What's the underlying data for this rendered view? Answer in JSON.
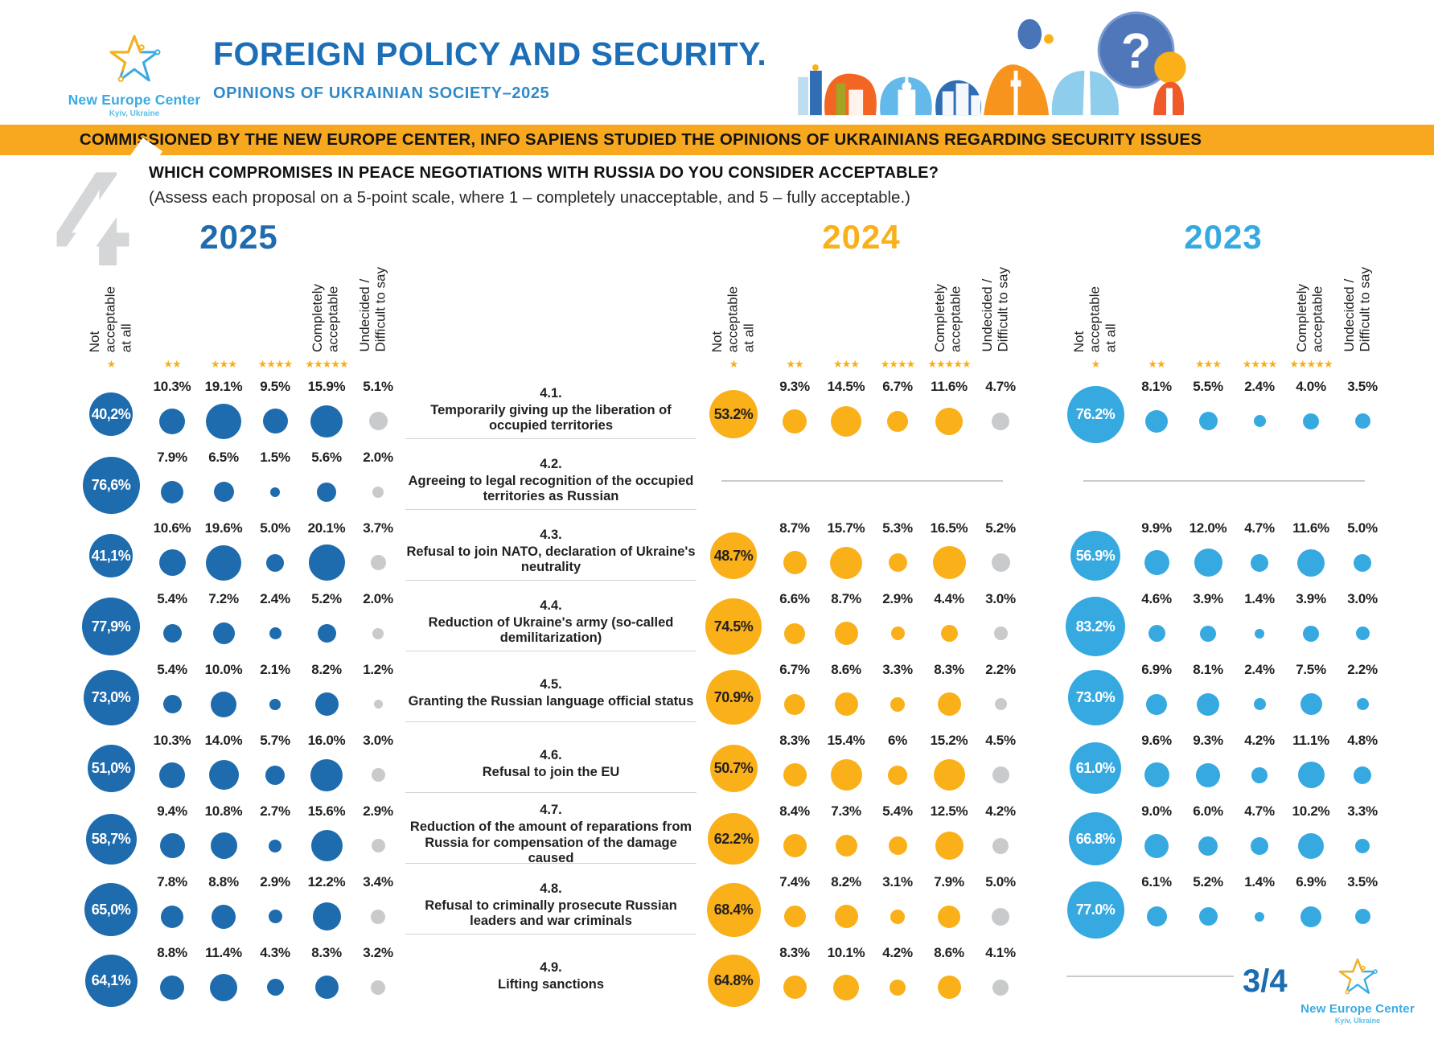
{
  "header": {
    "logo": {
      "name": "New Europe Center",
      "location": "Kyiv, Ukraine"
    },
    "title": "FOREIGN POLICY AND SECURITY.",
    "subtitle": "OPINIONS OF UKRAINIAN SOCIETY–2025"
  },
  "banner": {
    "text": "COMMISSIONED BY THE NEW EUROPE CENTER, INFO SAPIENS STUDIED THE OPINIONS OF UKRAINIANS REGARDING SECURITY ISSUES",
    "bg_color": "#F7A81E"
  },
  "question": {
    "number": "4",
    "title": "WHICH COMPROMISES IN PEACE NEGOTIATIONS WITH RUSSIA DO YOU CONSIDER ACCEPTABLE?",
    "subtitle": "(Assess each proposal on a 5-point scale, where 1 – completely unacceptable, and 5 – fully acceptable.)"
  },
  "footer": {
    "page_indicator": "3/4",
    "logo": {
      "name": "New Europe Center",
      "location": "Kyiv, Ukraine"
    }
  },
  "chart_data": {
    "type": "bubble-matrix",
    "title": "WHICH COMPROMISES IN PEACE NEGOTIATIONS WITH RUSSIA DO YOU CONSIDER ACCEPTABLE?",
    "star_icon": "★",
    "star_color": "#F9AF19",
    "scale_labels": {
      "not_acceptable": "Not\nacceptable\nat all",
      "completely": "Completely\nacceptable",
      "undecided": "Undecided /\nDifficult to say"
    },
    "columns": [
      "1 star",
      "2 stars",
      "3 stars",
      "4 stars",
      "5 stars",
      "undecided"
    ],
    "questions": [
      {
        "id": "4.1.",
        "text": "Temporarily giving up the liberation of occupied territories"
      },
      {
        "id": "4.2.",
        "text": "Agreeing to legal recognition of the occupied territories as Russian"
      },
      {
        "id": "4.3.",
        "text": "Refusal to join NATO, declaration of Ukraine's neutrality"
      },
      {
        "id": "4.4.",
        "text": "Reduction of Ukraine's army (so-called demilitarization)"
      },
      {
        "id": "4.5.",
        "text": "Granting the Russian language official status"
      },
      {
        "id": "4.6.",
        "text": "Refusal to join the EU"
      },
      {
        "id": "4.7.",
        "text": "Reduction of the amount of reparations from Russia for compensation of the damage caused"
      },
      {
        "id": "4.8.",
        "text": "Refusal to criminally prosecute Russian leaders and war criminals"
      },
      {
        "id": "4.9.",
        "text": "Lifting sanctions"
      }
    ],
    "years": [
      {
        "label": "2025",
        "color": "#1E6BAE",
        "undecided_color": "#C9CACB",
        "big_label_color": "#FFFFFF",
        "rows": [
          [
            "40,2%",
            "10.3%",
            "19.1%",
            "9.5%",
            "15.9%",
            "5.1%"
          ],
          [
            "76,6%",
            "7.9%",
            "6.5%",
            "1.5%",
            "5.6%",
            "2.0%"
          ],
          [
            "41,1%",
            "10.6%",
            "19.6%",
            "5.0%",
            "20.1%",
            "3.7%"
          ],
          [
            "77,9%",
            "5.4%",
            "7.2%",
            "2.4%",
            "5.2%",
            "2.0%"
          ],
          [
            "73,0%",
            "5.4%",
            "10.0%",
            "2.1%",
            "8.2%",
            "1.2%"
          ],
          [
            "51,0%",
            "10.3%",
            "14.0%",
            "5.7%",
            "16.0%",
            "3.0%"
          ],
          [
            "58,7%",
            "9.4%",
            "10.8%",
            "2.7%",
            "15.6%",
            "2.9%"
          ],
          [
            "65,0%",
            "7.8%",
            "8.8%",
            "2.9%",
            "12.2%",
            "3.4%"
          ],
          [
            "64,1%",
            "8.8%",
            "11.4%",
            "4.3%",
            "8.3%",
            "3.2%"
          ]
        ]
      },
      {
        "label": "2024",
        "color": "#F9B019",
        "undecided_color": "#C9CACB",
        "big_label_color": "#231F20",
        "rows": [
          [
            "53.2%",
            "9.3%",
            "14.5%",
            "6.7%",
            "11.6%",
            "4.7%"
          ],
          null,
          [
            "48.7%",
            "8.7%",
            "15.7%",
            "5.3%",
            "16.5%",
            "5.2%"
          ],
          [
            "74.5%",
            "6.6%",
            "8.7%",
            "2.9%",
            "4.4%",
            "3.0%"
          ],
          [
            "70.9%",
            "6.7%",
            "8.6%",
            "3.3%",
            "8.3%",
            "2.2%"
          ],
          [
            "50.7%",
            "8.3%",
            "15.4%",
            "6%",
            "15.2%",
            "4.5%"
          ],
          [
            "62.2%",
            "8.4%",
            "7.3%",
            "5.4%",
            "12.5%",
            "4.2%"
          ],
          [
            "68.4%",
            "7.4%",
            "8.2%",
            "3.1%",
            "7.9%",
            "5.0%"
          ],
          [
            "64.8%",
            "8.3%",
            "10.1%",
            "4.2%",
            "8.6%",
            "4.1%"
          ]
        ]
      },
      {
        "label": "2023",
        "color": "#36A9E1",
        "undecided_color": "#36A9E1",
        "big_label_color": "#FFFFFF",
        "rows": [
          [
            "76.2%",
            "8.1%",
            "5.5%",
            "2.4%",
            "4.0%",
            "3.5%"
          ],
          null,
          [
            "56.9%",
            "9.9%",
            "12.0%",
            "4.7%",
            "11.6%",
            "5.0%"
          ],
          [
            "83.2%",
            "4.6%",
            "3.9%",
            "1.4%",
            "3.9%",
            "3.0%"
          ],
          [
            "73.0%",
            "6.9%",
            "8.1%",
            "2.4%",
            "7.5%",
            "2.2%"
          ],
          [
            "61.0%",
            "9.6%",
            "9.3%",
            "4.2%",
            "11.1%",
            "4.8%"
          ],
          [
            "66.8%",
            "9.0%",
            "6.0%",
            "4.7%",
            "10.2%",
            "3.3%"
          ],
          [
            "77.0%",
            "6.1%",
            "5.2%",
            "1.4%",
            "6.9%",
            "3.5%"
          ],
          null
        ]
      }
    ]
  }
}
